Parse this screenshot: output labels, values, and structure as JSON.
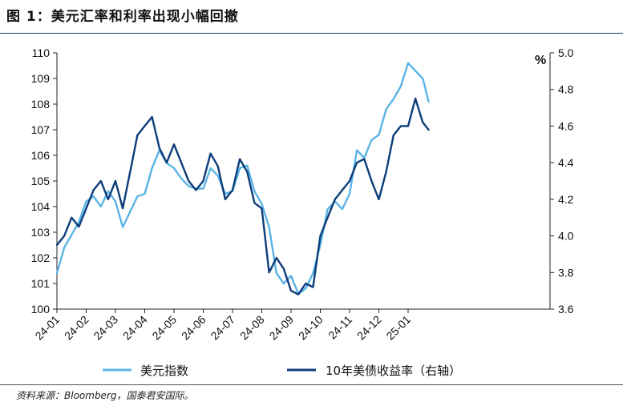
{
  "figure": {
    "title": "图 1：美元汇率和利率出现小幅回撤",
    "source": "资料来源：Bloomberg，国泰君安国际。"
  },
  "chart_data": {
    "type": "line",
    "unit_label": "%",
    "x_ticks": [
      "24-01",
      "24-02",
      "24-03",
      "24-04",
      "24-05",
      "24-06",
      "24-07",
      "24-08",
      "24-09",
      "24-10",
      "24-11",
      "24-12",
      "25-01"
    ],
    "x_range": [
      "2024-01",
      "2025-01"
    ],
    "y_left": {
      "range": [
        100,
        110
      ],
      "ticks": [
        "100",
        "101",
        "102",
        "103",
        "104",
        "105",
        "106",
        "107",
        "108",
        "109",
        "110"
      ]
    },
    "y_right": {
      "range": [
        3.6,
        5.0
      ],
      "ticks": [
        "3.6",
        "3.8",
        "4.0",
        "4.2",
        "4.4",
        "4.6",
        "4.8",
        "5.0"
      ]
    },
    "legend_position": "bottom",
    "grid": false,
    "series": [
      {
        "name": "美元指数",
        "axis": "left",
        "color": "#5ab4e5",
        "x": [
          0,
          0.25,
          0.5,
          0.75,
          1,
          1.25,
          1.5,
          1.75,
          2,
          2.25,
          2.5,
          2.75,
          3,
          3.25,
          3.5,
          3.75,
          4,
          4.25,
          4.5,
          4.75,
          5,
          5.25,
          5.5,
          5.75,
          6,
          6.25,
          6.5,
          6.75,
          7,
          7.25,
          7.5,
          7.75,
          8,
          8.25,
          8.5,
          8.75,
          9,
          9.25,
          9.5,
          9.75,
          10,
          10.25,
          10.5,
          10.75,
          11,
          11.25,
          11.5,
          11.75,
          12,
          12.25,
          12.5,
          12.7
        ],
        "values": [
          101.4,
          102.4,
          102.9,
          103.4,
          104.2,
          104.4,
          104.0,
          104.6,
          104.2,
          103.2,
          103.8,
          104.4,
          104.5,
          105.5,
          106.2,
          105.7,
          105.5,
          105.1,
          104.8,
          104.7,
          104.7,
          105.5,
          105.2,
          104.5,
          104.6,
          105.5,
          105.6,
          104.6,
          104.1,
          103.2,
          101.4,
          101.0,
          101.3,
          100.6,
          100.8,
          101.4,
          102.5,
          103.9,
          104.2,
          103.9,
          104.5,
          106.2,
          105.9,
          106.6,
          106.8,
          107.8,
          108.2,
          108.7,
          109.6,
          109.3,
          109.0,
          108.1
        ]
      },
      {
        "name": "10年美债收益率（右轴）",
        "axis": "right",
        "color": "#0d3d7a",
        "x": [
          0,
          0.25,
          0.5,
          0.75,
          1,
          1.25,
          1.5,
          1.75,
          2,
          2.25,
          2.5,
          2.75,
          3,
          3.25,
          3.5,
          3.75,
          4,
          4.25,
          4.5,
          4.75,
          5,
          5.25,
          5.5,
          5.75,
          6,
          6.25,
          6.5,
          6.75,
          7,
          7.25,
          7.5,
          7.75,
          8,
          8.25,
          8.5,
          8.75,
          9,
          9.25,
          9.5,
          9.75,
          10,
          10.25,
          10.5,
          10.75,
          11,
          11.25,
          11.5,
          11.75,
          12,
          12.25,
          12.5,
          12.7
        ],
        "values": [
          3.95,
          4.0,
          4.1,
          4.05,
          4.15,
          4.25,
          4.3,
          4.2,
          4.3,
          4.15,
          4.35,
          4.55,
          4.6,
          4.65,
          4.48,
          4.4,
          4.5,
          4.4,
          4.3,
          4.25,
          4.3,
          4.45,
          4.38,
          4.2,
          4.25,
          4.42,
          4.35,
          4.18,
          4.15,
          3.8,
          3.88,
          3.82,
          3.7,
          3.68,
          3.74,
          3.72,
          4.0,
          4.1,
          4.2,
          4.25,
          4.3,
          4.4,
          4.42,
          4.3,
          4.2,
          4.35,
          4.55,
          4.6,
          4.6,
          4.75,
          4.62,
          4.58
        ]
      }
    ]
  }
}
